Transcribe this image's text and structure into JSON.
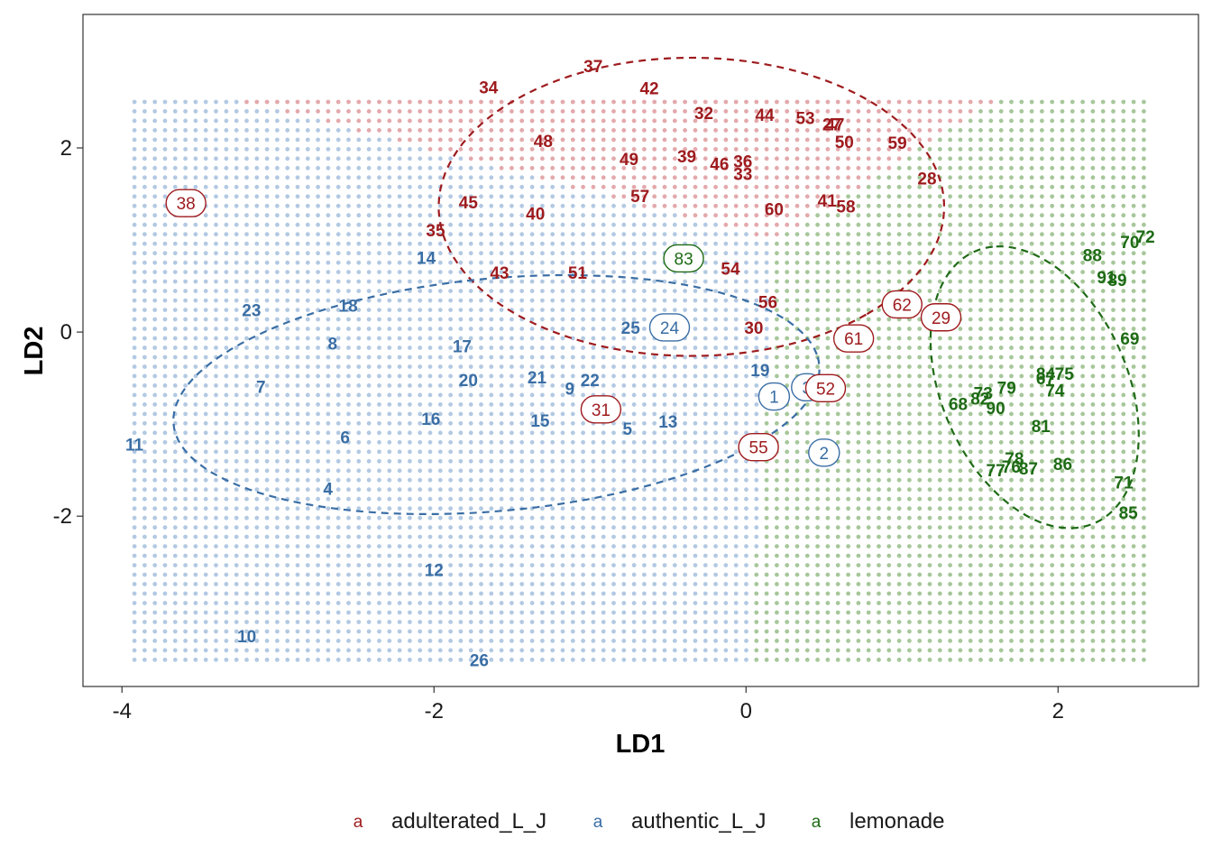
{
  "chart_data": {
    "type": "scatter",
    "xlabel": "LD1",
    "ylabel": "LD2",
    "xlim": [
      -4.25,
      2.9
    ],
    "ylim": [
      -3.85,
      3.45
    ],
    "xticks": [
      -4,
      -2,
      0,
      2
    ],
    "yticks": [
      -2,
      0,
      2
    ],
    "grid": false,
    "legend_position": "bottom",
    "legend_key_glyph": "a",
    "colors": {
      "adulterated_L_J": "#9e1b1e",
      "authentic_L_J": "#3a6ea5",
      "lemonade": "#1e6b15"
    },
    "region_colors": {
      "adulterated_L_J": "#e3a9ac",
      "authentic_L_J": "#b3c9e2",
      "lemonade": "#a7c79b"
    },
    "series": [
      {
        "name": "adulterated_L_J",
        "key": "adulterated_L_J"
      },
      {
        "name": "authentic_L_J",
        "key": "authentic_L_J"
      },
      {
        "name": "lemonade",
        "key": "lemonade"
      }
    ],
    "points": [
      {
        "id": "1",
        "x": 0.18,
        "y": -0.7,
        "cls": "authentic_L_J",
        "boxed": true
      },
      {
        "id": "2",
        "x": 0.5,
        "y": -1.31,
        "cls": "authentic_L_J",
        "boxed": true
      },
      {
        "id": "3",
        "x": 0.39,
        "y": -0.6,
        "cls": "authentic_L_J",
        "boxed": true
      },
      {
        "id": "4",
        "x": -2.68,
        "y": -1.7,
        "cls": "authentic_L_J",
        "boxed": false
      },
      {
        "id": "5",
        "x": -0.76,
        "y": -1.05,
        "cls": "authentic_L_J",
        "boxed": false
      },
      {
        "id": "6",
        "x": -2.57,
        "y": -1.14,
        "cls": "authentic_L_J",
        "boxed": false
      },
      {
        "id": "7",
        "x": -3.11,
        "y": -0.59,
        "cls": "authentic_L_J",
        "boxed": false
      },
      {
        "id": "8",
        "x": -2.65,
        "y": -0.12,
        "cls": "authentic_L_J",
        "boxed": false
      },
      {
        "id": "9",
        "x": -1.13,
        "y": -0.61,
        "cls": "authentic_L_J",
        "boxed": false
      },
      {
        "id": "10",
        "x": -3.2,
        "y": -3.3,
        "cls": "authentic_L_J",
        "boxed": false
      },
      {
        "id": "11",
        "x": -3.92,
        "y": -1.22,
        "cls": "authentic_L_J",
        "boxed": false
      },
      {
        "id": "12",
        "x": -2.0,
        "y": -2.58,
        "cls": "authentic_L_J",
        "boxed": false
      },
      {
        "id": "13",
        "x": -0.5,
        "y": -0.97,
        "cls": "authentic_L_J",
        "boxed": false
      },
      {
        "id": "14",
        "x": -2.05,
        "y": 0.81,
        "cls": "authentic_L_J",
        "boxed": false
      },
      {
        "id": "15",
        "x": -1.32,
        "y": -0.96,
        "cls": "authentic_L_J",
        "boxed": false
      },
      {
        "id": "16",
        "x": -2.02,
        "y": -0.94,
        "cls": "authentic_L_J",
        "boxed": false
      },
      {
        "id": "17",
        "x": -1.82,
        "y": -0.15,
        "cls": "authentic_L_J",
        "boxed": false
      },
      {
        "id": "18",
        "x": -2.55,
        "y": 0.29,
        "cls": "authentic_L_J",
        "boxed": false
      },
      {
        "id": "19",
        "x": 0.09,
        "y": -0.41,
        "cls": "authentic_L_J",
        "boxed": false
      },
      {
        "id": "20",
        "x": -1.78,
        "y": -0.52,
        "cls": "authentic_L_J",
        "boxed": false
      },
      {
        "id": "21",
        "x": -1.34,
        "y": -0.49,
        "cls": "authentic_L_J",
        "boxed": false
      },
      {
        "id": "22",
        "x": -1.0,
        "y": -0.52,
        "cls": "authentic_L_J",
        "boxed": false
      },
      {
        "id": "23",
        "x": -3.17,
        "y": 0.24,
        "cls": "authentic_L_J",
        "boxed": false
      },
      {
        "id": "24",
        "x": -0.49,
        "y": 0.05,
        "cls": "authentic_L_J",
        "boxed": true
      },
      {
        "id": "25",
        "x": -0.74,
        "y": 0.05,
        "cls": "authentic_L_J",
        "boxed": false
      },
      {
        "id": "26",
        "x": -1.71,
        "y": -3.56,
        "cls": "authentic_L_J",
        "boxed": false
      },
      {
        "id": "27",
        "x": 0.55,
        "y": 2.26,
        "cls": "adulterated_L_J",
        "boxed": false
      },
      {
        "id": "28",
        "x": 1.16,
        "y": 1.67,
        "cls": "adulterated_L_J",
        "boxed": false
      },
      {
        "id": "29",
        "x": 1.25,
        "y": 0.16,
        "cls": "adulterated_L_J",
        "boxed": true
      },
      {
        "id": "30",
        "x": 0.05,
        "y": 0.05,
        "cls": "adulterated_L_J",
        "boxed": false
      },
      {
        "id": "31",
        "x": -0.93,
        "y": -0.84,
        "cls": "adulterated_L_J",
        "boxed": true
      },
      {
        "id": "32",
        "x": -0.27,
        "y": 2.38,
        "cls": "adulterated_L_J",
        "boxed": false
      },
      {
        "id": "33",
        "x": -0.02,
        "y": 1.72,
        "cls": "adulterated_L_J",
        "boxed": false
      },
      {
        "id": "34",
        "x": -1.65,
        "y": 2.66,
        "cls": "adulterated_L_J",
        "boxed": false
      },
      {
        "id": "35",
        "x": -1.99,
        "y": 1.11,
        "cls": "adulterated_L_J",
        "boxed": false
      },
      {
        "id": "36",
        "x": -0.02,
        "y": 1.86,
        "cls": "adulterated_L_J",
        "boxed": false
      },
      {
        "id": "37",
        "x": -0.98,
        "y": 2.89,
        "cls": "adulterated_L_J",
        "boxed": false
      },
      {
        "id": "38",
        "x": -3.59,
        "y": 1.4,
        "cls": "adulterated_L_J",
        "boxed": true
      },
      {
        "id": "39",
        "x": -0.38,
        "y": 1.91,
        "cls": "adulterated_L_J",
        "boxed": false
      },
      {
        "id": "40",
        "x": -1.35,
        "y": 1.29,
        "cls": "adulterated_L_J",
        "boxed": false
      },
      {
        "id": "41",
        "x": 0.52,
        "y": 1.43,
        "cls": "adulterated_L_J",
        "boxed": false
      },
      {
        "id": "42",
        "x": -0.62,
        "y": 2.65,
        "cls": "adulterated_L_J",
        "boxed": false
      },
      {
        "id": "43",
        "x": -1.58,
        "y": 0.65,
        "cls": "adulterated_L_J",
        "boxed": false
      },
      {
        "id": "44",
        "x": 0.12,
        "y": 2.36,
        "cls": "adulterated_L_J",
        "boxed": false
      },
      {
        "id": "45",
        "x": -1.78,
        "y": 1.41,
        "cls": "adulterated_L_J",
        "boxed": false
      },
      {
        "id": "46",
        "x": -0.17,
        "y": 1.83,
        "cls": "adulterated_L_J",
        "boxed": false
      },
      {
        "id": "47",
        "x": 0.57,
        "y": 2.26,
        "cls": "adulterated_L_J",
        "boxed": false
      },
      {
        "id": "48",
        "x": -1.3,
        "y": 2.08,
        "cls": "adulterated_L_J",
        "boxed": false
      },
      {
        "id": "49",
        "x": -0.75,
        "y": 1.88,
        "cls": "adulterated_L_J",
        "boxed": false
      },
      {
        "id": "50",
        "x": 0.63,
        "y": 2.07,
        "cls": "adulterated_L_J",
        "boxed": false
      },
      {
        "id": "51",
        "x": -1.08,
        "y": 0.65,
        "cls": "adulterated_L_J",
        "boxed": false
      },
      {
        "id": "52",
        "x": 0.51,
        "y": -0.61,
        "cls": "adulterated_L_J",
        "boxed": true
      },
      {
        "id": "53",
        "x": 0.38,
        "y": 2.33,
        "cls": "adulterated_L_J",
        "boxed": false
      },
      {
        "id": "54",
        "x": -0.1,
        "y": 0.69,
        "cls": "adulterated_L_J",
        "boxed": false
      },
      {
        "id": "55",
        "x": 0.08,
        "y": -1.25,
        "cls": "adulterated_L_J",
        "boxed": true
      },
      {
        "id": "56",
        "x": 0.14,
        "y": 0.33,
        "cls": "adulterated_L_J",
        "boxed": false
      },
      {
        "id": "57",
        "x": -0.68,
        "y": 1.48,
        "cls": "adulterated_L_J",
        "boxed": false
      },
      {
        "id": "58",
        "x": 0.64,
        "y": 1.37,
        "cls": "adulterated_L_J",
        "boxed": false
      },
      {
        "id": "59",
        "x": 0.97,
        "y": 2.06,
        "cls": "adulterated_L_J",
        "boxed": false
      },
      {
        "id": "60",
        "x": 0.18,
        "y": 1.34,
        "cls": "adulterated_L_J",
        "boxed": false
      },
      {
        "id": "61",
        "x": 0.69,
        "y": -0.07,
        "cls": "adulterated_L_J",
        "boxed": true
      },
      {
        "id": "62",
        "x": 1.0,
        "y": 0.3,
        "cls": "adulterated_L_J",
        "boxed": true
      },
      {
        "id": "67",
        "x": 1.92,
        "y": -0.5,
        "cls": "lemonade",
        "boxed": false
      },
      {
        "id": "68",
        "x": 1.36,
        "y": -0.78,
        "cls": "lemonade",
        "boxed": false
      },
      {
        "id": "69",
        "x": 2.46,
        "y": -0.07,
        "cls": "lemonade",
        "boxed": false
      },
      {
        "id": "70",
        "x": 2.46,
        "y": 0.98,
        "cls": "lemonade",
        "boxed": false
      },
      {
        "id": "71",
        "x": 2.42,
        "y": -1.63,
        "cls": "lemonade",
        "boxed": false
      },
      {
        "id": "72",
        "x": 2.56,
        "y": 1.04,
        "cls": "lemonade",
        "boxed": false
      },
      {
        "id": "73",
        "x": 1.52,
        "y": -0.66,
        "cls": "lemonade",
        "boxed": false
      },
      {
        "id": "74",
        "x": 1.98,
        "y": -0.63,
        "cls": "lemonade",
        "boxed": false
      },
      {
        "id": "75",
        "x": 2.04,
        "y": -0.45,
        "cls": "lemonade",
        "boxed": false
      },
      {
        "id": "76",
        "x": 1.7,
        "y": -1.46,
        "cls": "lemonade",
        "boxed": false
      },
      {
        "id": "77",
        "x": 1.6,
        "y": -1.5,
        "cls": "lemonade",
        "boxed": false
      },
      {
        "id": "78",
        "x": 1.72,
        "y": -1.37,
        "cls": "lemonade",
        "boxed": false
      },
      {
        "id": "79",
        "x": 1.67,
        "y": -0.6,
        "cls": "lemonade",
        "boxed": false
      },
      {
        "id": "81",
        "x": 1.89,
        "y": -1.02,
        "cls": "lemonade",
        "boxed": false
      },
      {
        "id": "82",
        "x": 1.5,
        "y": -0.72,
        "cls": "lemonade",
        "boxed": false
      },
      {
        "id": "83",
        "x": -0.4,
        "y": 0.8,
        "cls": "lemonade",
        "boxed": true
      },
      {
        "id": "84",
        "x": 1.92,
        "y": -0.45,
        "cls": "lemonade",
        "boxed": false
      },
      {
        "id": "85",
        "x": 2.45,
        "y": -1.96,
        "cls": "lemonade",
        "boxed": false
      },
      {
        "id": "86",
        "x": 2.03,
        "y": -1.43,
        "cls": "lemonade",
        "boxed": false
      },
      {
        "id": "87",
        "x": 1.81,
        "y": -1.48,
        "cls": "lemonade",
        "boxed": false
      },
      {
        "id": "88",
        "x": 2.22,
        "y": 0.84,
        "cls": "lemonade",
        "boxed": false
      },
      {
        "id": "89",
        "x": 2.38,
        "y": 0.57,
        "cls": "lemonade",
        "boxed": false
      },
      {
        "id": "90",
        "x": 1.6,
        "y": -0.82,
        "cls": "lemonade",
        "boxed": false
      },
      {
        "id": "91",
        "x": 2.31,
        "y": 0.6,
        "cls": "lemonade",
        "boxed": false
      }
    ],
    "ellipses": [
      {
        "cls": "adulterated_L_J",
        "cx": -0.35,
        "cy": 1.36,
        "rx": 1.62,
        "ry": 1.62,
        "angle": -46
      },
      {
        "cls": "authentic_L_J",
        "cx": -1.6,
        "cy": -0.68,
        "rx": 2.1,
        "ry": 1.25,
        "angle": 12
      },
      {
        "cls": "lemonade",
        "cx": 1.85,
        "cy": -0.6,
        "rx": 1.55,
        "ry": 0.62,
        "angle": 100
      }
    ]
  }
}
